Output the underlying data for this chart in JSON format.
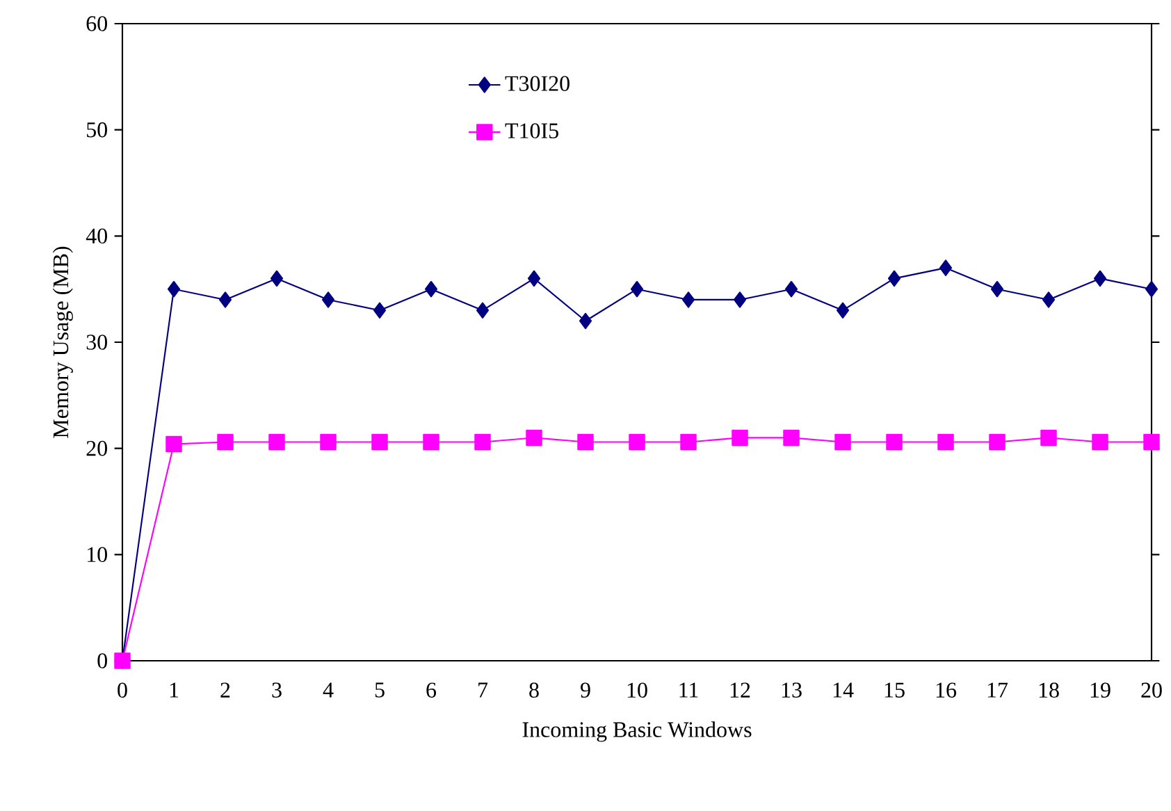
{
  "chart_data": {
    "type": "line",
    "xlabel": "Incoming Basic Windows",
    "ylabel": "Memory Usage (MB)",
    "x": [
      0,
      1,
      2,
      3,
      4,
      5,
      6,
      7,
      8,
      9,
      10,
      11,
      12,
      13,
      14,
      15,
      16,
      17,
      18,
      19,
      20
    ],
    "xlim": [
      0,
      20
    ],
    "xticks": [
      0,
      1,
      2,
      3,
      4,
      5,
      6,
      7,
      8,
      9,
      10,
      11,
      12,
      13,
      14,
      15,
      16,
      17,
      18,
      19,
      20
    ],
    "ylim": [
      0,
      60
    ],
    "yticks": [
      0,
      10,
      20,
      30,
      40,
      50,
      60
    ],
    "grid": false,
    "legend": "top",
    "line_style": "solid",
    "series": [
      {
        "name": "T30I20",
        "color": "#000080",
        "marker": "diamond",
        "values": [
          0,
          35,
          34,
          36,
          34,
          33,
          35,
          33,
          36,
          32,
          35,
          34,
          34,
          35,
          33,
          36,
          37,
          35,
          34,
          36,
          35
        ]
      },
      {
        "name": "T10I5",
        "color": "#ff00ff",
        "marker": "square",
        "values": [
          0,
          20.4,
          20.6,
          20.6,
          20.6,
          20.6,
          20.6,
          20.6,
          21,
          20.6,
          20.6,
          20.6,
          21,
          21,
          20.6,
          20.6,
          20.6,
          20.6,
          21,
          20.6,
          20.6
        ]
      }
    ]
  }
}
